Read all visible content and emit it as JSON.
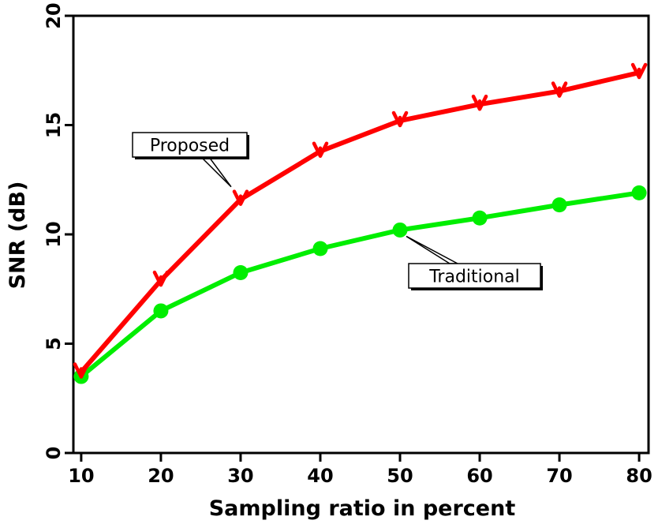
{
  "chart_data": {
    "type": "line",
    "title": "",
    "xlabel": "Sampling ratio in percent",
    "ylabel": "SNR (dB)",
    "x": [
      10,
      20,
      30,
      40,
      50,
      60,
      70,
      80
    ],
    "xlim": [
      10,
      80
    ],
    "ylim": [
      0,
      20
    ],
    "xticks": [
      10,
      20,
      30,
      40,
      50,
      60,
      70,
      80
    ],
    "yticks": [
      0,
      5,
      10,
      15,
      20
    ],
    "grid": false,
    "series": [
      {
        "name": "Proposed",
        "color": "#ff0000",
        "marker": "down-triangle",
        "values": [
          3.7,
          7.9,
          11.6,
          13.8,
          15.2,
          15.95,
          16.55,
          17.4
        ]
      },
      {
        "name": "Traditional",
        "color": "#00ee00",
        "marker": "circle",
        "values": [
          3.5,
          6.5,
          8.25,
          9.35,
          10.2,
          10.75,
          11.35,
          11.9
        ]
      }
    ],
    "annotations": [
      {
        "text": "Proposed",
        "series": "Proposed",
        "points_to_x": 30
      },
      {
        "text": "Traditional",
        "series": "Traditional",
        "points_to_x": 50
      }
    ]
  }
}
